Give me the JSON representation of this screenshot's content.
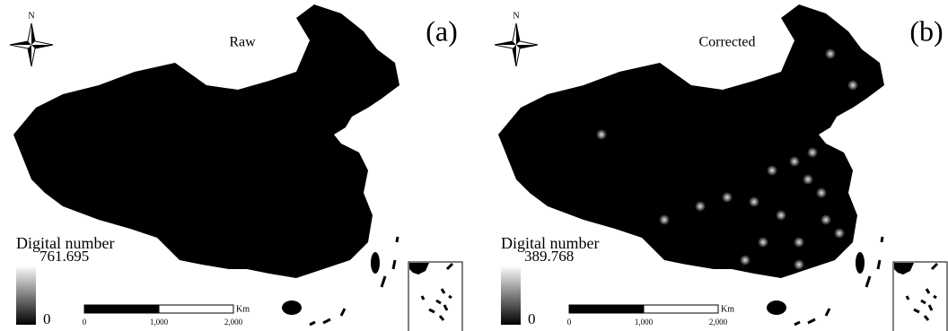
{
  "panels": [
    {
      "label": "(a)",
      "title": "Raw",
      "north": "N",
      "legend": {
        "title": "Digital number",
        "max": "761.695",
        "min": "0"
      },
      "scale_bar": {
        "ticks": [
          "0",
          "1,000",
          "2,000"
        ],
        "unit": "Km"
      }
    },
    {
      "label": "(b)",
      "title": "Corrected",
      "north": "N",
      "legend": {
        "title": "Digital number",
        "max": "389.768",
        "min": "0"
      },
      "scale_bar": {
        "ticks": [
          "0",
          "1,000",
          "2,000"
        ],
        "unit": "Km"
      }
    }
  ]
}
